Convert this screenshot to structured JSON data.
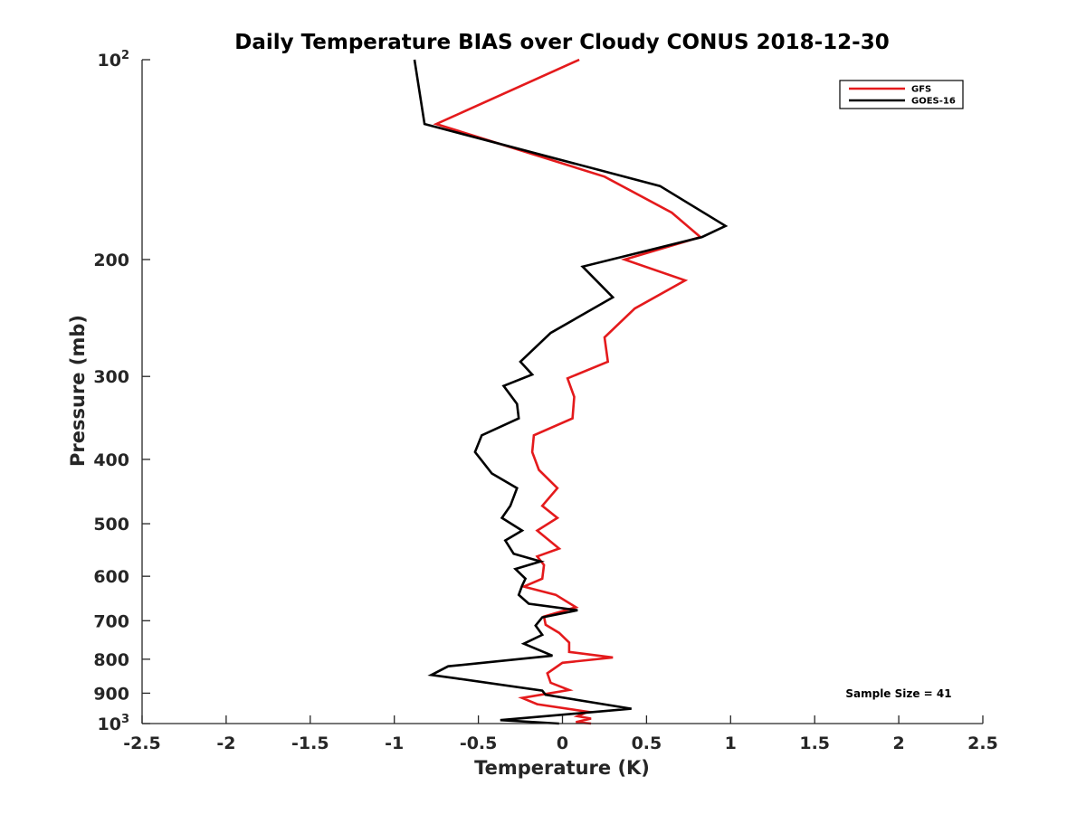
{
  "chart_data": {
    "type": "line",
    "title": "Daily Temperature BIAS over Cloudy CONUS 2018-12-30",
    "xlabel": "Temperature (K)",
    "ylabel": "Pressure (mb)",
    "xlim": [
      -2.5,
      2.5
    ],
    "ylim": [
      1000,
      100
    ],
    "y_scale": "log",
    "y_reversed": true,
    "grid": false,
    "legend_position": "top-right",
    "x_ticks": [
      "-2.5",
      "-2",
      "-1.5",
      "-1",
      "-0.5",
      "0",
      "0.5",
      "1",
      "1.5",
      "2",
      "2.5"
    ],
    "x_tick_values": [
      -2.5,
      -2,
      -1.5,
      -1,
      -0.5,
      0,
      0.5,
      1,
      1.5,
      2,
      2.5
    ],
    "y_ticks": [
      {
        "value": 100,
        "base": "10",
        "exp": "2"
      },
      {
        "value": 200,
        "label": "200"
      },
      {
        "value": 300,
        "label": "300"
      },
      {
        "value": 400,
        "label": "400"
      },
      {
        "value": 500,
        "label": "500"
      },
      {
        "value": 600,
        "label": "600"
      },
      {
        "value": 700,
        "label": "700"
      },
      {
        "value": 800,
        "label": "800"
      },
      {
        "value": 900,
        "label": "900"
      },
      {
        "value": 1000,
        "base": "10",
        "exp": "3"
      }
    ],
    "series": [
      {
        "name": "GFS",
        "color": "#e41a1c",
        "points": [
          [
            0.1,
            100
          ],
          [
            -0.75,
            125
          ],
          [
            0.25,
            150
          ],
          [
            0.65,
            170
          ],
          [
            0.82,
            185
          ],
          [
            0.37,
            200
          ],
          [
            0.73,
            215
          ],
          [
            0.43,
            237
          ],
          [
            0.25,
            262
          ],
          [
            0.27,
            285
          ],
          [
            0.03,
            302
          ],
          [
            0.07,
            322
          ],
          [
            0.06,
            347
          ],
          [
            -0.17,
            368
          ],
          [
            -0.18,
            390
          ],
          [
            -0.14,
            415
          ],
          [
            -0.03,
            442
          ],
          [
            -0.12,
            470
          ],
          [
            -0.03,
            490
          ],
          [
            -0.15,
            512
          ],
          [
            -0.02,
            545
          ],
          [
            -0.15,
            560
          ],
          [
            -0.11,
            577
          ],
          [
            -0.12,
            605
          ],
          [
            -0.23,
            622
          ],
          [
            -0.04,
            640
          ],
          [
            0.08,
            668
          ],
          [
            -0.11,
            690
          ],
          [
            -0.1,
            710
          ],
          [
            -0.02,
            730
          ],
          [
            0.04,
            755
          ],
          [
            0.04,
            780
          ],
          [
            0.3,
            795
          ],
          [
            0.0,
            810
          ],
          [
            -0.09,
            840
          ],
          [
            -0.07,
            868
          ],
          [
            0.04,
            890
          ],
          [
            -0.24,
            915
          ],
          [
            -0.15,
            935
          ],
          [
            0.15,
            960
          ],
          [
            0.09,
            975
          ],
          [
            0.17,
            983
          ],
          [
            0.08,
            995
          ],
          [
            0.17,
            1000
          ]
        ]
      },
      {
        "name": "GOES-16",
        "color": "#000000",
        "points": [
          [
            -0.88,
            100
          ],
          [
            -0.82,
            125
          ],
          [
            0.58,
            155
          ],
          [
            0.97,
            178
          ],
          [
            0.83,
            185
          ],
          [
            0.12,
            205
          ],
          [
            0.3,
            228
          ],
          [
            -0.07,
            258
          ],
          [
            -0.25,
            285
          ],
          [
            -0.18,
            298
          ],
          [
            -0.35,
            310
          ],
          [
            -0.27,
            330
          ],
          [
            -0.26,
            347
          ],
          [
            -0.48,
            368
          ],
          [
            -0.52,
            390
          ],
          [
            -0.42,
            420
          ],
          [
            -0.27,
            442
          ],
          [
            -0.31,
            470
          ],
          [
            -0.36,
            490
          ],
          [
            -0.24,
            512
          ],
          [
            -0.34,
            530
          ],
          [
            -0.29,
            555
          ],
          [
            -0.13,
            570
          ],
          [
            -0.28,
            585
          ],
          [
            -0.22,
            605
          ],
          [
            -0.24,
            620
          ],
          [
            -0.26,
            640
          ],
          [
            -0.2,
            660
          ],
          [
            0.09,
            675
          ],
          [
            -0.12,
            692
          ],
          [
            -0.16,
            712
          ],
          [
            -0.12,
            735
          ],
          [
            -0.23,
            758
          ],
          [
            -0.06,
            790
          ],
          [
            -0.68,
            820
          ],
          [
            -0.78,
            845
          ],
          [
            -0.63,
            855
          ],
          [
            -0.12,
            892
          ],
          [
            -0.1,
            905
          ],
          [
            0.41,
            950
          ],
          [
            -0.37,
            988
          ],
          [
            -0.02,
            1000
          ]
        ]
      }
    ],
    "annotations": [
      {
        "text": "Sample Size = 41"
      }
    ]
  }
}
